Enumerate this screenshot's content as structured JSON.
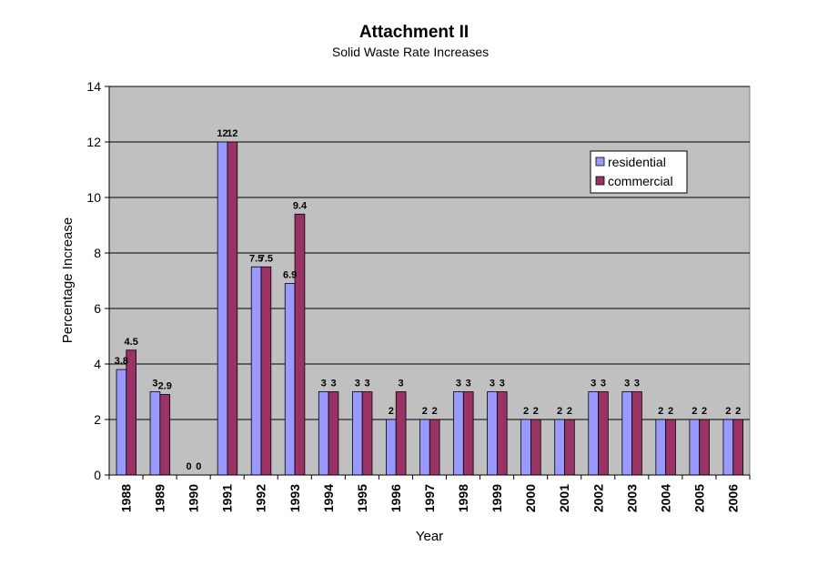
{
  "colors": {
    "residential": "#9999FF",
    "commercial": "#993366",
    "plot_bg": "#C0C0C0",
    "gridline": "#000000"
  },
  "chart_data": {
    "type": "bar",
    "title": "Attachment II",
    "subtitle": "Solid Waste Rate Increases",
    "xlabel": "Year",
    "ylabel": "Percentage Increase",
    "ylim": [
      0,
      14
    ],
    "yticks": [
      0,
      2,
      4,
      6,
      8,
      10,
      12,
      14
    ],
    "grid": true,
    "legend_position": "top-right",
    "categories": [
      "1988",
      "1989",
      "1990",
      "1991",
      "1992",
      "1993",
      "1994",
      "1995",
      "1996",
      "1997",
      "1998",
      "1999",
      "2000",
      "2001",
      "2002",
      "2003",
      "2004",
      "2005",
      "2006"
    ],
    "series": [
      {
        "name": "residential",
        "color": "#9999FF",
        "values": [
          3.8,
          3,
          0,
          12,
          7.5,
          6.9,
          3,
          3,
          2,
          2,
          3,
          3,
          2,
          2,
          3,
          3,
          2,
          2,
          2
        ],
        "labels": [
          "3.8",
          "3",
          "0",
          "12",
          "7.5",
          "6.9",
          "3",
          "3",
          "2",
          "2",
          "3",
          "3",
          "2",
          "2",
          "3",
          "3",
          "2",
          "2",
          "2"
        ]
      },
      {
        "name": "commercial",
        "color": "#993366",
        "values": [
          4.5,
          2.9,
          0,
          12,
          7.5,
          9.4,
          3,
          3,
          3,
          2,
          3,
          3,
          2,
          2,
          3,
          3,
          2,
          2,
          2
        ],
        "labels": [
          "4.5",
          "2.9",
          "0",
          "12",
          "7.5",
          "9.4",
          "3",
          "3",
          "3",
          "2",
          "3",
          "3",
          "2",
          "2",
          "3",
          "3",
          "2",
          "2",
          "2"
        ]
      }
    ]
  }
}
